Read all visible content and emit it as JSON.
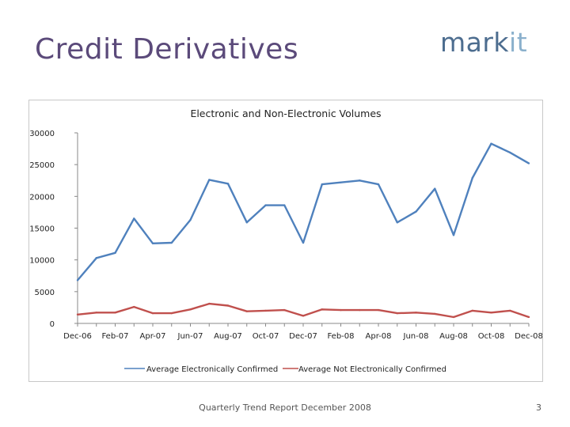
{
  "slide": {
    "title": "Credit Derivatives",
    "footer": "Quarterly Trend Report December 2008",
    "page": "3"
  },
  "logo": {
    "main": "mark",
    "accent": "it"
  },
  "colors": {
    "series_1": "#4f81bd",
    "series_2": "#c0504d",
    "title": "#5b4a7a"
  },
  "chart_data": {
    "type": "line",
    "title": "Electronic and Non-Electronic Volumes",
    "xlabel": "",
    "ylabel": "",
    "ylim": [
      0,
      30000
    ],
    "yticks": [
      "30000",
      "25000",
      "20000",
      "15000",
      "10000",
      "5000",
      "0"
    ],
    "grid": false,
    "legend": "bottom",
    "x": [
      "Dec-06",
      "Jan-07",
      "Feb-07",
      "Mar-07",
      "Apr-07",
      "May-07",
      "Jun-07",
      "Jul-07",
      "Aug-07",
      "Sep-07",
      "Oct-07",
      "Nov-07",
      "Dec-07",
      "Jan-08",
      "Feb-08",
      "Mar-08",
      "Apr-08",
      "May-08",
      "Jun-08",
      "Jul-08",
      "Aug-08",
      "Sep-08",
      "Oct-08",
      "Nov-08",
      "Dec-08"
    ],
    "xtick_labels": [
      "Dec-06",
      "",
      "Feb-07",
      "",
      "Apr-07",
      "",
      "Jun-07",
      "",
      "Aug-07",
      "",
      "Oct-07",
      "",
      "Dec-07",
      "",
      "Feb-08",
      "",
      "Apr-08",
      "",
      "Jun-08",
      "",
      "Aug-08",
      "",
      "Oct-08",
      "",
      "Dec-08"
    ],
    "series": [
      {
        "name": "Average Electronically Confirmed",
        "values": [
          6800,
          10300,
          11100,
          16500,
          12600,
          12700,
          16300,
          22600,
          22000,
          15900,
          18600,
          18600,
          12700,
          21900,
          22200,
          22500,
          21900,
          15900,
          17600,
          21200,
          13900,
          22900,
          28300,
          26900,
          25200
        ]
      },
      {
        "name": "Average Not Electronically Confirmed",
        "values": [
          1400,
          1700,
          1700,
          2600,
          1600,
          1600,
          2200,
          3100,
          2800,
          1900,
          2000,
          2100,
          1200,
          2200,
          2100,
          2100,
          2100,
          1600,
          1700,
          1500,
          1000,
          2000,
          1700,
          2000,
          1000
        ]
      }
    ]
  }
}
